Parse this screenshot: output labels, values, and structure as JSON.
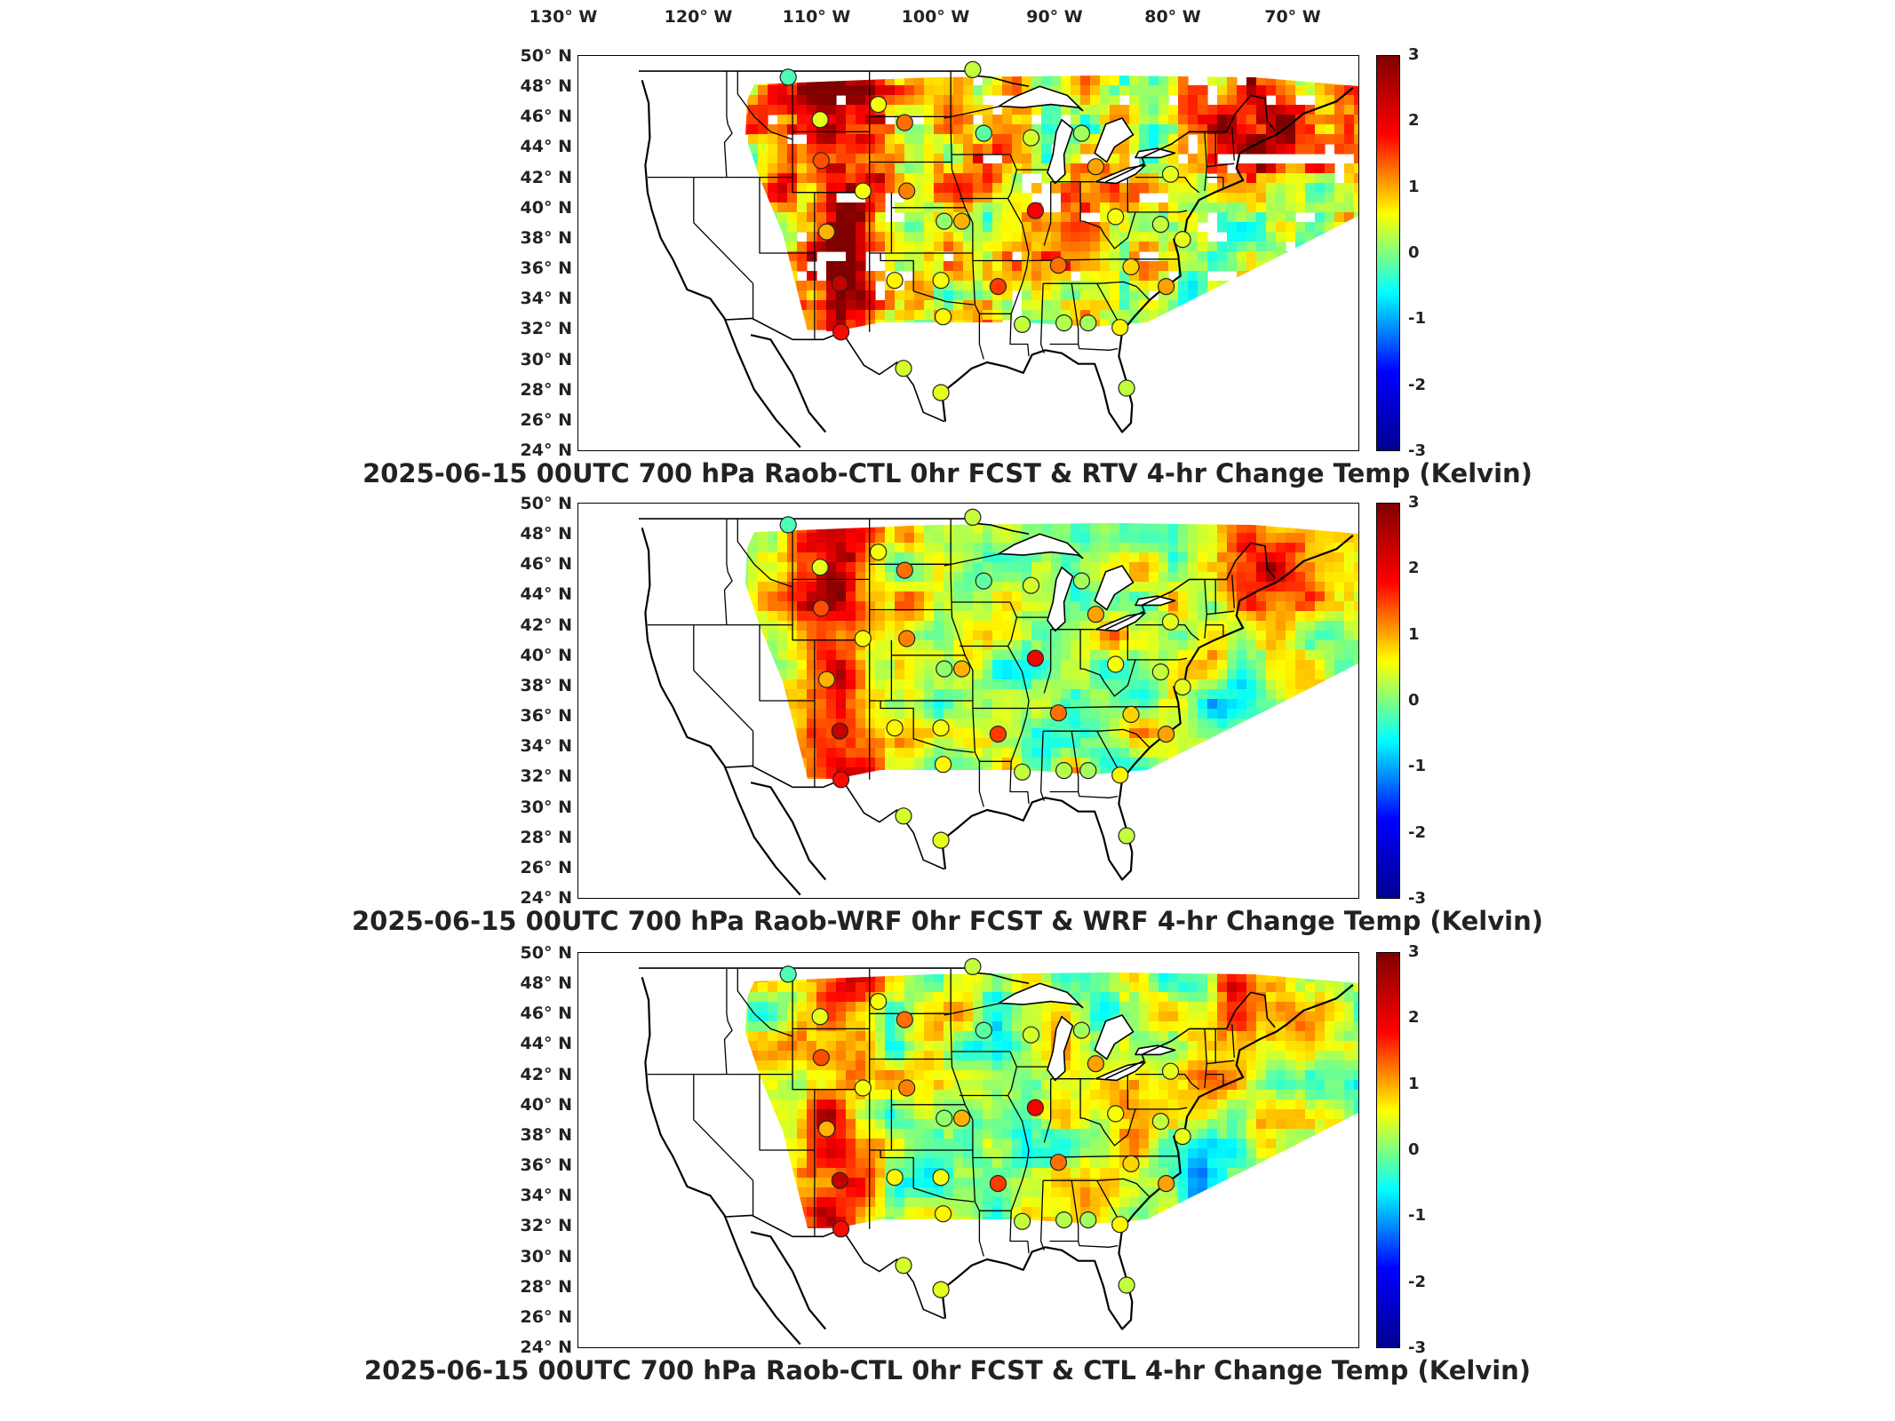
{
  "longitude_labels": [
    "130° W",
    "120° W",
    "110° W",
    "100° W",
    "90° W",
    "80° W",
    "70° W"
  ],
  "latitude_labels": [
    "50° N",
    "48° N",
    "46° N",
    "44° N",
    "42° N",
    "40° N",
    "38° N",
    "36° N",
    "34° N",
    "32° N",
    "30° N",
    "28° N",
    "26° N",
    "24° N"
  ],
  "colorbar": {
    "ticks": [
      "3",
      "2",
      "1",
      "0",
      "-1",
      "-2",
      "-3"
    ],
    "range": [
      -3,
      3
    ],
    "colormap": "jet",
    "colors": [
      "#00008f",
      "#0000ff",
      "#00ffff",
      "#ffff00",
      "#ff0000",
      "#800000"
    ]
  },
  "panels": [
    {
      "title": "2025-06-15 00UTC 700 hPa Raob-CTL 0hr FCST & RTV 4-hr Change Temp (Kelvin)",
      "field_source": "RTV",
      "has_missing_data_gaps": true
    },
    {
      "title": "2025-06-15 00UTC 700 hPa Raob-WRF 0hr FCST & WRF 4-hr Change Temp (Kelvin)",
      "field_source": "WRF",
      "has_missing_data_gaps": false
    },
    {
      "title": "2025-06-15 00UTC 700 hPa Raob-CTL 0hr FCST & CTL 4-hr Change Temp (Kelvin)",
      "field_source": "CTL",
      "has_missing_data_gaps": false
    }
  ],
  "raob_stations": [
    {
      "lon": -111.4,
      "lat": 48.6,
      "value": -0.3
    },
    {
      "lon": -108.5,
      "lat": 45.8,
      "value": 0.6
    },
    {
      "lon": -103.2,
      "lat": 46.8,
      "value": 0.7
    },
    {
      "lon": -100.8,
      "lat": 45.6,
      "value": 1.6
    },
    {
      "lon": -94.6,
      "lat": 49.1,
      "value": 0.4
    },
    {
      "lon": -93.6,
      "lat": 44.9,
      "value": -0.2
    },
    {
      "lon": -89.3,
      "lat": 44.6,
      "value": 0.5
    },
    {
      "lon": -84.7,
      "lat": 44.9,
      "value": 0.2
    },
    {
      "lon": -83.4,
      "lat": 42.7,
      "value": 1.3
    },
    {
      "lon": -76.6,
      "lat": 42.2,
      "value": 0.6
    },
    {
      "lon": -108.4,
      "lat": 43.1,
      "value": 1.8
    },
    {
      "lon": -107.9,
      "lat": 38.4,
      "value": 1.2
    },
    {
      "lon": -104.6,
      "lat": 41.1,
      "value": 0.7
    },
    {
      "lon": -100.6,
      "lat": 41.1,
      "value": 1.5
    },
    {
      "lon": -97.2,
      "lat": 39.1,
      "value": 0.1
    },
    {
      "lon": -95.6,
      "lat": 39.1,
      "value": 1.2
    },
    {
      "lon": -88.9,
      "lat": 39.8,
      "value": 2.3
    },
    {
      "lon": -81.6,
      "lat": 39.4,
      "value": 0.7
    },
    {
      "lon": -77.5,
      "lat": 38.9,
      "value": 0.4
    },
    {
      "lon": -75.5,
      "lat": 37.9,
      "value": 0.6
    },
    {
      "lon": -101.7,
      "lat": 35.2,
      "value": 0.8
    },
    {
      "lon": -97.5,
      "lat": 35.2,
      "value": 0.7
    },
    {
      "lon": -106.7,
      "lat": 35.0,
      "value": 2.6
    },
    {
      "lon": -86.8,
      "lat": 36.2,
      "value": 1.6
    },
    {
      "lon": -80.2,
      "lat": 36.1,
      "value": 1.0
    },
    {
      "lon": -77.0,
      "lat": 34.8,
      "value": 1.3
    },
    {
      "lon": -92.3,
      "lat": 34.8,
      "value": 1.9
    },
    {
      "lon": -97.3,
      "lat": 32.8,
      "value": 0.8
    },
    {
      "lon": -90.1,
      "lat": 32.3,
      "value": 0.4
    },
    {
      "lon": -86.3,
      "lat": 32.4,
      "value": 0.3
    },
    {
      "lon": -84.1,
      "lat": 32.4,
      "value": 0.2
    },
    {
      "lon": -81.2,
      "lat": 32.1,
      "value": 0.8
    },
    {
      "lon": -106.6,
      "lat": 31.8,
      "value": 2.2
    },
    {
      "lon": -100.9,
      "lat": 29.4,
      "value": 0.5
    },
    {
      "lon": -97.5,
      "lat": 27.8,
      "value": 0.6
    },
    {
      "lon": -80.6,
      "lat": 28.1,
      "value": 0.4
    }
  ]
}
